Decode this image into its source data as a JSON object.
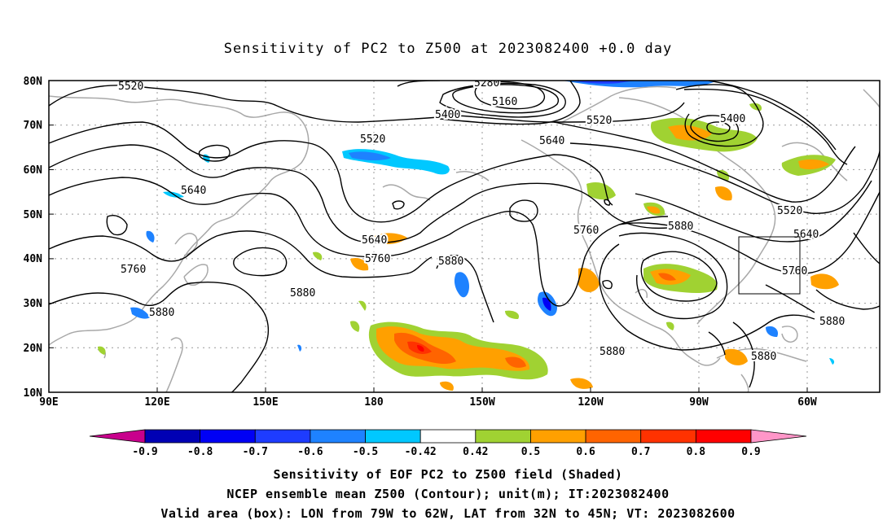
{
  "title": "Sensitivity of PC2 to Z500 at 2023082400 +0.0 day",
  "lat_labels": [
    "80N",
    "70N",
    "60N",
    "50N",
    "40N",
    "30N",
    "20N",
    "10N"
  ],
  "lon_labels": [
    "90E",
    "120E",
    "150E",
    "180",
    "150W",
    "120W",
    "90W",
    "60W"
  ],
  "colorbar": {
    "labels": [
      "-0.9",
      "-0.8",
      "-0.7",
      "-0.6",
      "-0.5",
      "-0.42",
      "0.42",
      "0.5",
      "0.6",
      "0.7",
      "0.8",
      "0.9"
    ],
    "colors": [
      "#c8008c",
      "#0000b4",
      "#0000f5",
      "#1e3cff",
      "#1e82ff",
      "#00c8ff",
      "#ffffff",
      "#a0d232",
      "#ffa000",
      "#ff6400",
      "#ff3200",
      "#ff0000",
      "#ff96c8"
    ]
  },
  "contour_labels": [
    "5520",
    "5280",
    "5160",
    "5400",
    "5520",
    "5640",
    "5400",
    "5520",
    "5640",
    "5760",
    "5640",
    "5760",
    "5880",
    "5880",
    "5880",
    "5760",
    "5880",
    "5880",
    "5520",
    "5640",
    "5760",
    "5880",
    "5880",
    "5880"
  ],
  "valid_box": {
    "lon_min": -79,
    "lon_max": -62,
    "lat_min": 32,
    "lat_max": 45
  },
  "captions": [
    "Sensitivity of EOF PC2 to Z500 field (Shaded)",
    "NCEP ensemble mean Z500 (Contour); unit(m); IT:2023082400",
    "Valid area (box): LON from 79W to 62W, LAT from 32N to 45N; VT: 2023082600"
  ]
}
